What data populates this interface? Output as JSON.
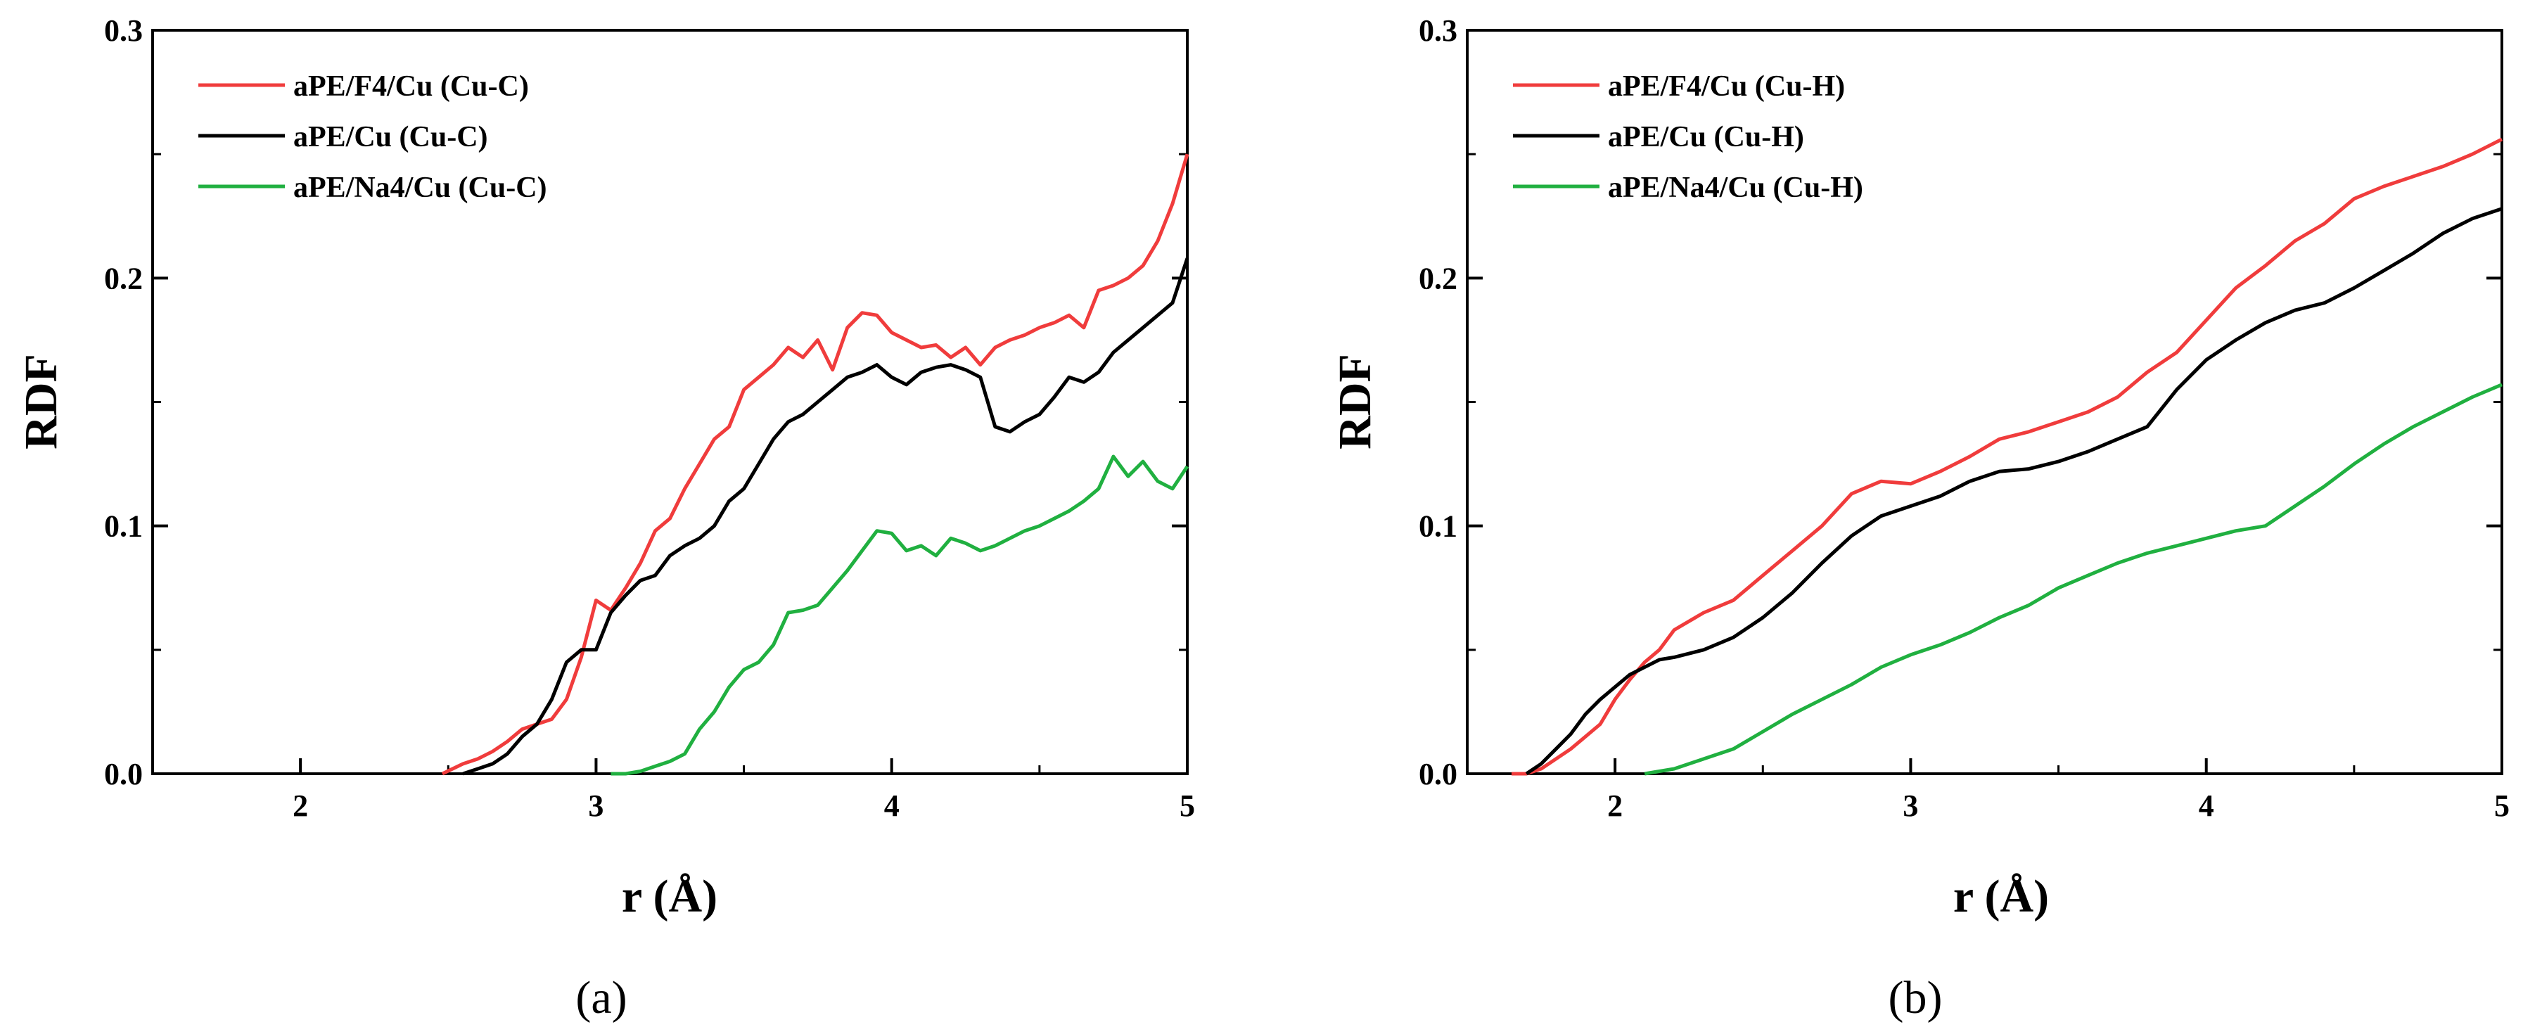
{
  "chart_data": [
    {
      "type": "line",
      "panel_label": "(a)",
      "xlabel": "r (Å)",
      "ylabel": "RDF",
      "xlim": [
        1.5,
        5.0
      ],
      "ylim": [
        0.0,
        0.3
      ],
      "xticks": [
        2,
        3,
        4,
        5
      ],
      "yticks": [
        0.0,
        0.1,
        0.2,
        0.3
      ],
      "xtick_labels": [
        "2",
        "3",
        "4",
        "5"
      ],
      "ytick_labels": [
        "0.0",
        "0.1",
        "0.2",
        "0.3"
      ],
      "grid": false,
      "legend_position": "top-left",
      "series": [
        {
          "name": "aPE/F4/Cu (Cu-C)",
          "color": "#f03c3c",
          "x": [
            2.48,
            2.55,
            2.6,
            2.65,
            2.7,
            2.75,
            2.8,
            2.85,
            2.9,
            2.95,
            3.0,
            3.05,
            3.1,
            3.15,
            3.2,
            3.25,
            3.3,
            3.35,
            3.4,
            3.45,
            3.5,
            3.55,
            3.6,
            3.65,
            3.7,
            3.75,
            3.8,
            3.85,
            3.9,
            3.95,
            4.0,
            4.05,
            4.1,
            4.15,
            4.2,
            4.25,
            4.3,
            4.35,
            4.4,
            4.45,
            4.5,
            4.55,
            4.6,
            4.65,
            4.7,
            4.75,
            4.8,
            4.85,
            4.9,
            4.95,
            5.0
          ],
          "y": [
            0.0,
            0.004,
            0.006,
            0.009,
            0.013,
            0.018,
            0.02,
            0.022,
            0.03,
            0.047,
            0.07,
            0.066,
            0.075,
            0.085,
            0.098,
            0.103,
            0.115,
            0.125,
            0.135,
            0.14,
            0.155,
            0.16,
            0.165,
            0.172,
            0.168,
            0.175,
            0.163,
            0.18,
            0.186,
            0.185,
            0.178,
            0.175,
            0.172,
            0.173,
            0.168,
            0.172,
            0.165,
            0.172,
            0.175,
            0.177,
            0.18,
            0.182,
            0.185,
            0.18,
            0.195,
            0.197,
            0.2,
            0.205,
            0.215,
            0.23,
            0.25
          ]
        },
        {
          "name": "aPE/Cu (Cu-C)",
          "color": "#000000",
          "x": [
            2.55,
            2.6,
            2.65,
            2.7,
            2.75,
            2.8,
            2.85,
            2.9,
            2.95,
            3.0,
            3.05,
            3.1,
            3.15,
            3.2,
            3.25,
            3.3,
            3.35,
            3.4,
            3.45,
            3.5,
            3.55,
            3.6,
            3.65,
            3.7,
            3.75,
            3.8,
            3.85,
            3.9,
            3.95,
            4.0,
            4.05,
            4.1,
            4.15,
            4.2,
            4.25,
            4.3,
            4.35,
            4.4,
            4.45,
            4.5,
            4.55,
            4.6,
            4.65,
            4.7,
            4.75,
            4.8,
            4.85,
            4.9,
            4.95,
            5.0
          ],
          "y": [
            0.0,
            0.002,
            0.004,
            0.008,
            0.015,
            0.02,
            0.03,
            0.045,
            0.05,
            0.05,
            0.065,
            0.072,
            0.078,
            0.08,
            0.088,
            0.092,
            0.095,
            0.1,
            0.11,
            0.115,
            0.125,
            0.135,
            0.142,
            0.145,
            0.15,
            0.155,
            0.16,
            0.162,
            0.165,
            0.16,
            0.157,
            0.162,
            0.164,
            0.165,
            0.163,
            0.16,
            0.14,
            0.138,
            0.142,
            0.145,
            0.152,
            0.16,
            0.158,
            0.162,
            0.17,
            0.175,
            0.18,
            0.185,
            0.19,
            0.208
          ]
        },
        {
          "name": "aPE/Na4/Cu (Cu-C)",
          "color": "#20b040",
          "x": [
            3.05,
            3.1,
            3.15,
            3.2,
            3.25,
            3.3,
            3.35,
            3.4,
            3.45,
            3.5,
            3.55,
            3.6,
            3.65,
            3.7,
            3.75,
            3.8,
            3.85,
            3.9,
            3.95,
            4.0,
            4.05,
            4.1,
            4.15,
            4.2,
            4.25,
            4.3,
            4.35,
            4.4,
            4.45,
            4.5,
            4.55,
            4.6,
            4.65,
            4.7,
            4.75,
            4.8,
            4.85,
            4.9,
            4.95,
            5.0
          ],
          "y": [
            0.0,
            0.0,
            0.001,
            0.003,
            0.005,
            0.008,
            0.018,
            0.025,
            0.035,
            0.042,
            0.045,
            0.052,
            0.065,
            0.066,
            0.068,
            0.075,
            0.082,
            0.09,
            0.098,
            0.097,
            0.09,
            0.092,
            0.088,
            0.095,
            0.093,
            0.09,
            0.092,
            0.095,
            0.098,
            0.1,
            0.103,
            0.106,
            0.11,
            0.115,
            0.128,
            0.12,
            0.126,
            0.118,
            0.115,
            0.124
          ]
        }
      ]
    },
    {
      "type": "line",
      "panel_label": "(b)",
      "xlabel": "r (Å)",
      "ylabel": "RDF",
      "xlim": [
        1.5,
        5.0
      ],
      "ylim": [
        0.0,
        0.3
      ],
      "xticks": [
        2,
        3,
        4,
        5
      ],
      "yticks": [
        0.0,
        0.1,
        0.2,
        0.3
      ],
      "xtick_labels": [
        "2",
        "3",
        "4",
        "5"
      ],
      "ytick_labels": [
        "0.0",
        "0.1",
        "0.2",
        "0.3"
      ],
      "grid": false,
      "legend_position": "top-left",
      "series": [
        {
          "name": "aPE/F4/Cu (Cu-H)",
          "color": "#f03c3c",
          "x": [
            1.65,
            1.7,
            1.75,
            1.8,
            1.85,
            1.9,
            1.95,
            2.0,
            2.05,
            2.1,
            2.15,
            2.2,
            2.3,
            2.4,
            2.5,
            2.6,
            2.7,
            2.8,
            2.9,
            3.0,
            3.1,
            3.2,
            3.3,
            3.4,
            3.5,
            3.6,
            3.7,
            3.8,
            3.9,
            4.0,
            4.1,
            4.2,
            4.3,
            4.4,
            4.5,
            4.6,
            4.7,
            4.8,
            4.9,
            5.0
          ],
          "y": [
            0.0,
            0.0,
            0.002,
            0.006,
            0.01,
            0.015,
            0.02,
            0.03,
            0.038,
            0.045,
            0.05,
            0.058,
            0.065,
            0.07,
            0.08,
            0.09,
            0.1,
            0.113,
            0.118,
            0.117,
            0.122,
            0.128,
            0.135,
            0.138,
            0.142,
            0.146,
            0.152,
            0.162,
            0.17,
            0.183,
            0.196,
            0.205,
            0.215,
            0.222,
            0.232,
            0.237,
            0.241,
            0.245,
            0.25,
            0.256
          ]
        },
        {
          "name": "aPE/Cu (Cu-H)",
          "color": "#000000",
          "x": [
            1.7,
            1.75,
            1.8,
            1.85,
            1.9,
            1.95,
            2.0,
            2.05,
            2.1,
            2.15,
            2.2,
            2.3,
            2.4,
            2.5,
            2.6,
            2.7,
            2.8,
            2.9,
            3.0,
            3.1,
            3.2,
            3.3,
            3.4,
            3.5,
            3.6,
            3.7,
            3.8,
            3.9,
            4.0,
            4.1,
            4.2,
            4.3,
            4.4,
            4.5,
            4.6,
            4.7,
            4.8,
            4.9,
            5.0
          ],
          "y": [
            0.0,
            0.004,
            0.01,
            0.016,
            0.024,
            0.03,
            0.035,
            0.04,
            0.043,
            0.046,
            0.047,
            0.05,
            0.055,
            0.063,
            0.073,
            0.085,
            0.096,
            0.104,
            0.108,
            0.112,
            0.118,
            0.122,
            0.123,
            0.126,
            0.13,
            0.135,
            0.14,
            0.155,
            0.167,
            0.175,
            0.182,
            0.187,
            0.19,
            0.196,
            0.203,
            0.21,
            0.218,
            0.224,
            0.228
          ]
        },
        {
          "name": "aPE/Na4/Cu (Cu-H)",
          "color": "#20b040",
          "x": [
            2.1,
            2.2,
            2.3,
            2.4,
            2.5,
            2.6,
            2.7,
            2.8,
            2.9,
            3.0,
            3.1,
            3.2,
            3.3,
            3.4,
            3.5,
            3.6,
            3.7,
            3.8,
            3.9,
            4.0,
            4.1,
            4.2,
            4.3,
            4.4,
            4.5,
            4.6,
            4.7,
            4.8,
            4.9,
            5.0
          ],
          "y": [
            0.0,
            0.002,
            0.006,
            0.01,
            0.017,
            0.024,
            0.03,
            0.036,
            0.043,
            0.048,
            0.052,
            0.057,
            0.063,
            0.068,
            0.075,
            0.08,
            0.085,
            0.089,
            0.092,
            0.095,
            0.098,
            0.1,
            0.108,
            0.116,
            0.125,
            0.133,
            0.14,
            0.146,
            0.152,
            0.157
          ]
        }
      ]
    }
  ]
}
